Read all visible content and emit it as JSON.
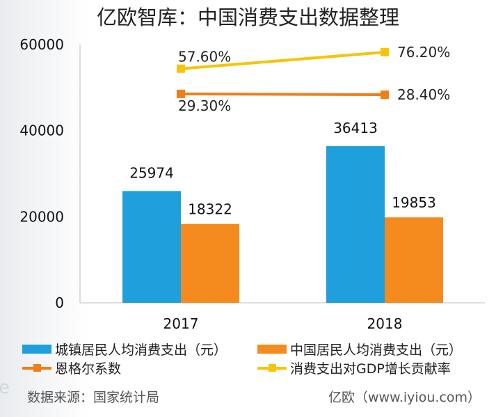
{
  "title": "亿欧智库：中国消费支出数据整理",
  "source": "数据来源：国家统计局",
  "credit": "亿欧（www.iyiou.com）",
  "edge_glyph": "e",
  "colors": {
    "blue": "#1f9fdb",
    "orange": "#f58a1f",
    "orange_line": "#f07f18",
    "yellow": "#f7c40b",
    "axis": "#bfbfbf"
  },
  "chart_data": {
    "type": "bar",
    "categories": [
      "2017",
      "2018"
    ],
    "ylim": [
      0,
      60000
    ],
    "yticks": [
      "0",
      "20000",
      "40000",
      "60000"
    ],
    "series": [
      {
        "name": "城镇居民人均消费支出（元）",
        "values": [
          25974,
          36413
        ],
        "labels": [
          "25974",
          "36413"
        ],
        "color": "#1f9fdb"
      },
      {
        "name": "中国居民人均消费支出（元）",
        "values": [
          18322,
          19853
        ],
        "labels": [
          "18322",
          "19853"
        ],
        "color": "#f58a1f"
      }
    ],
    "line_series": [
      {
        "name": "恩格尔系数",
        "values": [
          29.3,
          28.4
        ],
        "labels": [
          "29.30%",
          "28.40%"
        ],
        "color": "#f07f18"
      },
      {
        "name": "消费支出对GDP增长贡献率",
        "values": [
          57.6,
          76.2
        ],
        "labels": [
          "57.60%",
          "76.20%"
        ],
        "color": "#f7c40b"
      }
    ],
    "legend_position": "bottom"
  }
}
